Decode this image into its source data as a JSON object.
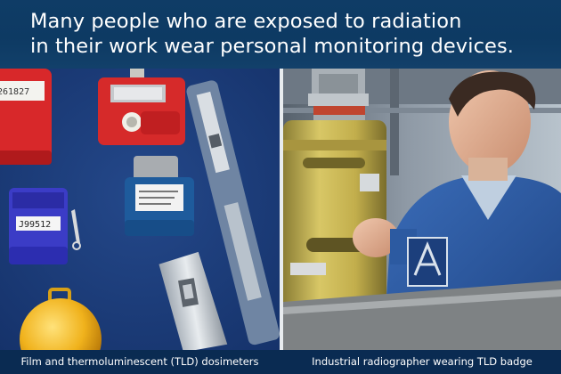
{
  "header": {
    "line1": "Many people who are exposed to radiation",
    "line2": "in their work wear personal monitoring devices."
  },
  "captions": {
    "left": "Film and thermoluminescent (TLD) dosimeters",
    "right": "Industrial radiographer wearing TLD badge"
  },
  "dosimeter_labels": {
    "red_badge": "261827",
    "purple_badge": "J99512"
  },
  "colors": {
    "header_background": "#0d3a63",
    "caption_background": "#0a2b52",
    "felt_background": "#1a3c77",
    "coverall_blue": "#2f5fa8"
  }
}
